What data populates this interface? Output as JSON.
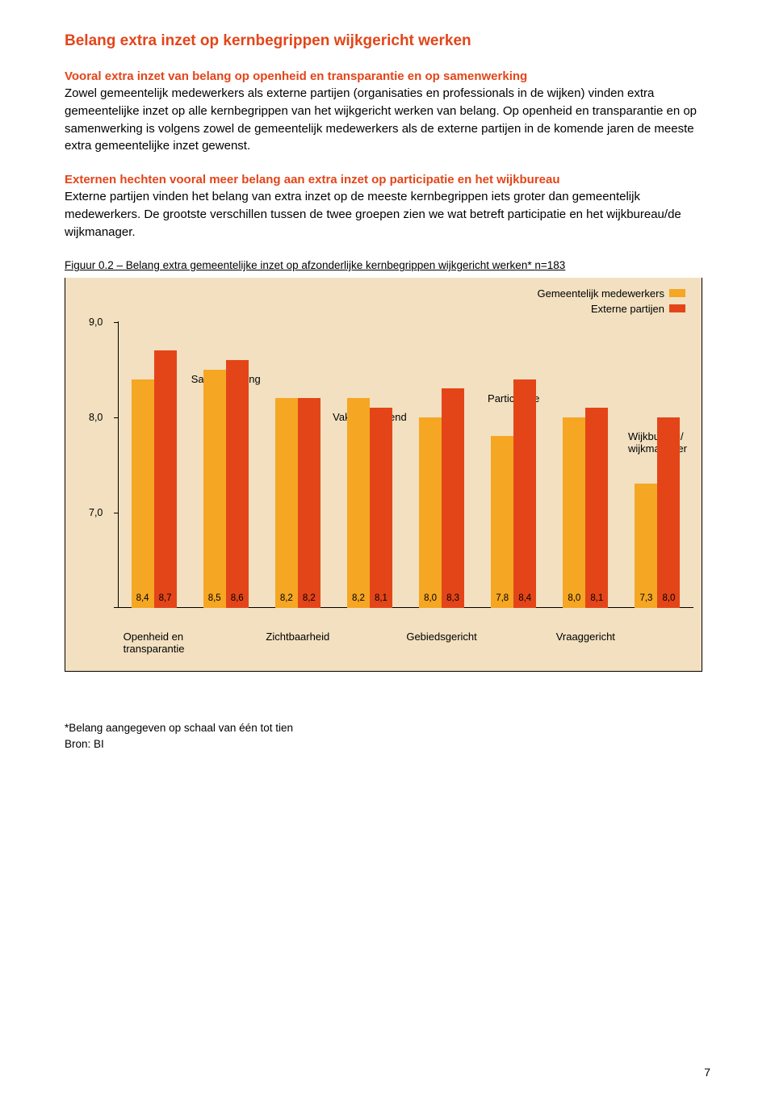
{
  "colors": {
    "red": "#e34519",
    "orange": "#f5a623",
    "text": "#000000",
    "chart_bg": "#f2e0c0"
  },
  "title": "Belang extra inzet op kernbegrippen wijkgericht werken",
  "sec1_heading": "Vooral extra inzet van belang op openheid en transparantie en op samenwerking",
  "sec1_body": "Zowel gemeentelijk medewerkers als externe partijen (organisaties en professionals in de wijken) vinden extra gemeentelijke inzet op alle kernbegrippen van het wijkgericht werken van belang. Op openheid en transparantie en op samenwerking is volgens zowel de gemeentelijk medewerkers als de externe partijen in de komende jaren de meeste extra gemeentelijke inzet gewenst.",
  "sec2_heading": "Externen hechten vooral meer belang aan extra inzet op participatie en het wijkbureau",
  "sec2_body": "Externe partijen vinden het belang van extra inzet op de meeste kernbegrippen iets groter dan gemeentelijk medewerkers. De grootste verschillen tussen de twee groepen zien we wat betreft participatie en het wijkbureau/de wijkmanager.",
  "figure_caption": "Figuur 0.2 – Belang extra gemeentelijke inzet op afzonderlijke kernbegrippen wijkgericht werken* n=183",
  "legend": {
    "series1": "Gemeentelijk medewerkers",
    "series2": "Externe partijen"
  },
  "yticks": [
    "9,0",
    "8,0",
    "7,0"
  ],
  "chart": {
    "ymin": 6.0,
    "scale": 118,
    "groups": [
      {
        "top_label": "",
        "bottom_label": "Openheid en\ntransparantie",
        "v1": 8.4,
        "v2": 8.7,
        "l1": "8,4",
        "l2": "8,7"
      },
      {
        "top_label": "Samenwerking",
        "bottom_label": "",
        "v1": 8.5,
        "v2": 8.6,
        "l1": "8,5",
        "l2": "8,6"
      },
      {
        "top_label": "",
        "bottom_label": "Zichtbaarheid",
        "v1": 8.2,
        "v2": 8.2,
        "l1": "8,2",
        "l2": "8,2"
      },
      {
        "top_label": "Vakoverstijgend",
        "bottom_label": "",
        "v1": 8.2,
        "v2": 8.1,
        "l1": "8,2",
        "l2": "8,1"
      },
      {
        "top_label": "",
        "bottom_label": "Gebiedsgericht",
        "v1": 8.0,
        "v2": 8.3,
        "l1": "8,0",
        "l2": "8,3"
      },
      {
        "top_label": "Participatie",
        "bottom_label": "",
        "v1": 7.8,
        "v2": 8.4,
        "l1": "7,8",
        "l2": "8,4"
      },
      {
        "top_label": "",
        "bottom_label": "Vraaggericht",
        "v1": 8.0,
        "v2": 8.1,
        "l1": "8,0",
        "l2": "8,1"
      },
      {
        "top_label": "Wijkbureau/\nwijkmanager",
        "bottom_label": "",
        "v1": 7.3,
        "v2": 8.0,
        "l1": "7,3",
        "l2": "8,0"
      }
    ]
  },
  "footnote1": "*Belang aangegeven op schaal van één tot tien",
  "footnote2": "Bron: BI",
  "page": "7"
}
